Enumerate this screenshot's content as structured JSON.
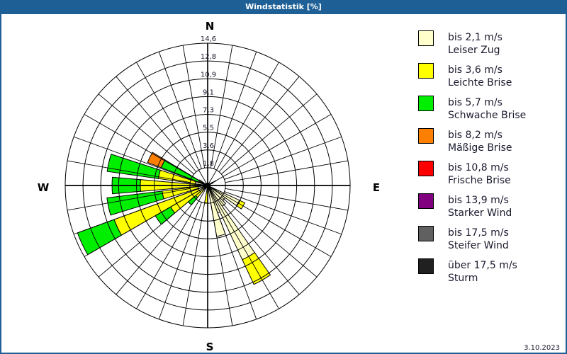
{
  "window": {
    "title": "Windstatistik [%]",
    "date": "3.10.2023"
  },
  "colors": {
    "titlebar": "#1e6096",
    "grid": "#000000"
  },
  "compass": {
    "n": "N",
    "e": "E",
    "s": "S",
    "w": "W"
  },
  "legend": [
    {
      "range": "bis 2,1 m/s",
      "name": "Leiser Zug",
      "color": "#ffffcc"
    },
    {
      "range": "bis 3,6 m/s",
      "name": "Leichte Brise",
      "color": "#ffff00"
    },
    {
      "range": "bis 5,7 m/s",
      "name": "Schwache Brise",
      "color": "#00ee00"
    },
    {
      "range": "bis 8,2 m/s",
      "name": "Mäßige Brise",
      "color": "#ff8000"
    },
    {
      "range": "bis 10,8 m/s",
      "name": "Frische Brise",
      "color": "#ff0000"
    },
    {
      "range": "bis 13,9 m/s",
      "name": "Starker Wind",
      "color": "#800080"
    },
    {
      "range": "bis 17,5 m/s",
      "name": "Steifer Wind",
      "color": "#606060"
    },
    {
      "range": "über 17,5 m/s",
      "name": "Sturm",
      "color": "#202020"
    }
  ],
  "chart_data": {
    "type": "polar-bar (wind rose)",
    "title": "Windstatistik [%]",
    "unit": "%",
    "radial_ticks": [
      "1,8",
      "3,6",
      "5,5",
      "7,3",
      "9,1",
      "10,9",
      "12,8",
      "14,6"
    ],
    "radial_max": 14.6,
    "sector_width_deg": 10,
    "series_names": [
      "Leiser Zug",
      "Leichte Brise",
      "Schwache Brise",
      "Mäßige Brise",
      "Frische Brise",
      "Starker Wind",
      "Steifer Wind",
      "Sturm"
    ],
    "sectors": [
      {
        "bearing": 120,
        "cumulative": [
          3.6,
          4.2
        ]
      },
      {
        "bearing": 130,
        "cumulative": [
          2.2
        ]
      },
      {
        "bearing": 140,
        "cumulative": [
          2.6
        ]
      },
      {
        "bearing": 150,
        "cumulative": [
          8.4,
          11.2
        ]
      },
      {
        "bearing": 160,
        "cumulative": [
          3.0
        ]
      },
      {
        "bearing": 165,
        "cumulative": [
          5.3
        ]
      },
      {
        "bearing": 185,
        "cumulative": [
          0.3,
          1.8
        ]
      },
      {
        "bearing": 225,
        "cumulative": [
          0.6,
          1.6,
          2.6
        ]
      },
      {
        "bearing": 235,
        "cumulative": [
          1.0,
          4.4,
          6.2
        ]
      },
      {
        "bearing": 245,
        "cumulative": [
          1.0,
          10.2,
          14.2
        ]
      },
      {
        "bearing": 258,
        "cumulative": [
          1.0,
          4.7,
          10.4
        ]
      },
      {
        "bearing": 270,
        "cumulative": [
          1.0,
          6.9,
          9.8
        ]
      },
      {
        "bearing": 283,
        "cumulative": [
          1.3,
          5.1,
          10.4
        ]
      },
      {
        "bearing": 296,
        "cumulative": [
          0.3,
          0.6,
          5.1,
          6.6
        ]
      },
      {
        "bearing": 300,
        "cumulative": [
          0.5,
          1.0
        ]
      },
      {
        "bearing": 60,
        "cumulative": [
          0.6
        ]
      }
    ]
  }
}
